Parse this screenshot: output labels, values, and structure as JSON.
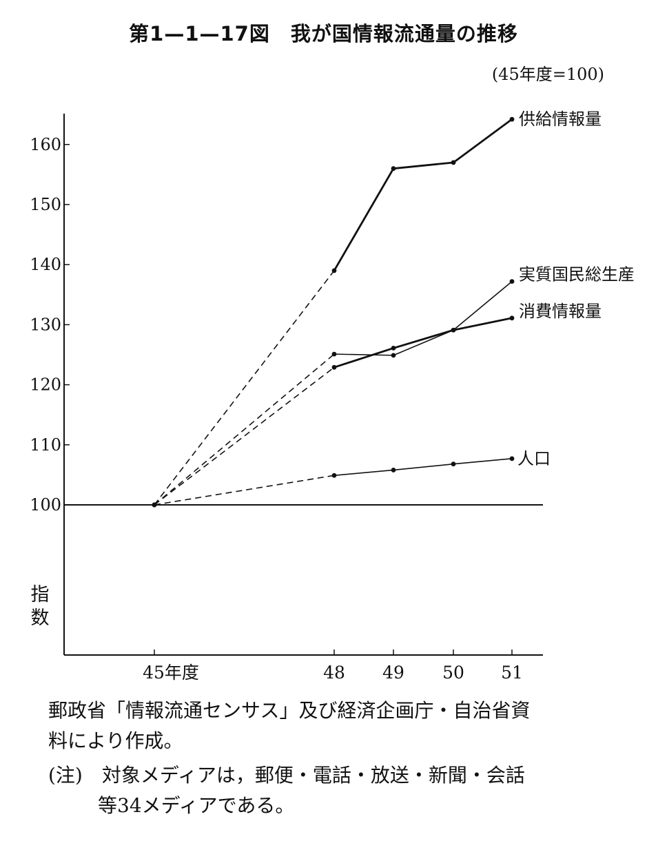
{
  "title": "第1—1—17図　我が国情報流通量の推移",
  "base_note": "(45年度=100)",
  "chart_data": {
    "type": "line",
    "title": "第1—1—17図　我が国情報流通量の推移",
    "ylabel": "指数",
    "xlabel": "",
    "y_ticks": [
      "100",
      "110",
      "120",
      "130",
      "140",
      "150",
      "160"
    ],
    "x_categories": [
      "45年度",
      "48",
      "49",
      "50",
      "51"
    ],
    "x_values": [
      45,
      48,
      49,
      50,
      51
    ],
    "ylim": [
      75,
      165
    ],
    "baseline": 100,
    "segment_45_48_style": "dashed",
    "series": [
      {
        "name": "供給情報量",
        "x": [
          45,
          48,
          49,
          50,
          51
        ],
        "y": [
          100,
          139,
          156,
          157,
          164.2
        ],
        "line": "bold"
      },
      {
        "name": "実質国民総生産",
        "x": [
          45,
          48,
          49,
          50,
          51
        ],
        "y": [
          100,
          125.1,
          124.9,
          129.1,
          137.2
        ],
        "line": "thin"
      },
      {
        "name": "消費情報量",
        "x": [
          45,
          48,
          49,
          50,
          51
        ],
        "y": [
          100,
          122.9,
          126.1,
          129.1,
          131.1
        ],
        "line": "bold"
      },
      {
        "name": "人口",
        "x": [
          45,
          48,
          49,
          50,
          51
        ],
        "y": [
          100,
          104.9,
          105.8,
          106.8,
          107.7
        ],
        "line": "thin"
      }
    ]
  },
  "source_lines": [
    "郵政省「情報流通センサス」及び経済企画庁・自治省資",
    "料により作成。"
  ],
  "note_lines": [
    "(注)　対象メディアは，郵便・電話・放送・新聞・会話",
    "等34メディアである。"
  ]
}
